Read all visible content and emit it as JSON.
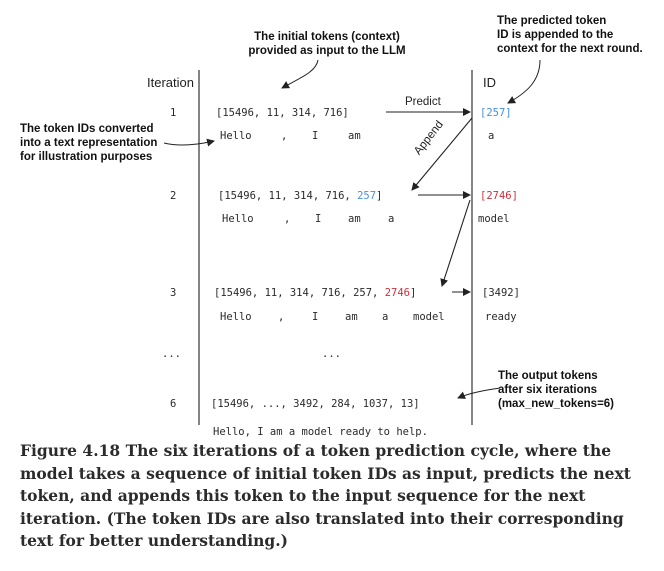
{
  "headers": {
    "iteration": "Iteration",
    "id": "ID"
  },
  "callouts": {
    "initial_tokens": [
      "The initial tokens (context)",
      "provided as input to the LLM"
    ],
    "predicted_token": [
      "The predicted token",
      "ID is appended to the",
      "context for the next round."
    ],
    "token_ids_converted": [
      "The token IDs converted",
      "into a text representation",
      "for illustration purposes"
    ],
    "output_tokens": [
      "The output tokens",
      "after six iterations",
      "(max_new_tokens=6)"
    ]
  },
  "arrow_labels": {
    "predict": "Predict",
    "append": "Append"
  },
  "rows": [
    {
      "iteration": "1",
      "ids_prefix": "[15496, 11, 314, 716]",
      "ids_highlight": "",
      "ids_suffix": "",
      "tokens": [
        "Hello",
        ",",
        "I",
        "am"
      ],
      "predicted_id": "[257]",
      "predicted_text": "a"
    },
    {
      "iteration": "2",
      "ids_prefix": "[15496, 11, 314, 716, ",
      "ids_highlight": "257",
      "ids_suffix": "]",
      "tokens": [
        "Hello",
        ",",
        "I",
        "am",
        "a"
      ],
      "predicted_id": "[2746]",
      "predicted_text": "model"
    },
    {
      "iteration": "3",
      "ids_prefix": "[15496, 11, 314, 716, 257, ",
      "ids_highlight": "2746",
      "ids_suffix": "]",
      "tokens": [
        "Hello",
        ",",
        "I",
        "am",
        "a",
        "model"
      ],
      "predicted_id": "[3492]",
      "predicted_text": "ready"
    }
  ],
  "ellipsis": {
    "iteration": "...",
    "content": "..."
  },
  "last_row": {
    "iteration": "6",
    "ids": "[15496, ..., 3492, 284, 1037, 13]",
    "text": "Hello, I am a model ready to help."
  },
  "caption": "Figure 4.18 The six iterations of a token prediction cycle, where the model takes a sequence of initial token IDs as input, predicts the next token, and appends this token to the input sequence for the next iteration. (The token IDs are also translated into their corresponding text for better understanding.)"
}
